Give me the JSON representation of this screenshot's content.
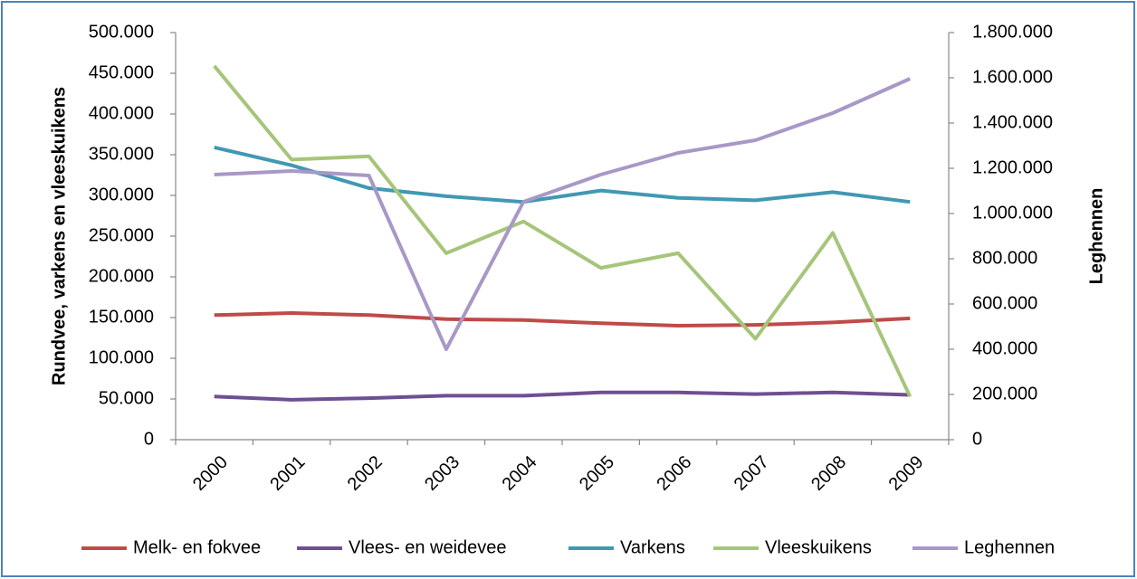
{
  "chart_data": {
    "type": "line",
    "y_label": "Rundvee, varkens en vleeskuikens",
    "y2_label": "Leghennen",
    "categories": [
      "2000",
      "2001",
      "2002",
      "2003",
      "2004",
      "2005",
      "2006",
      "2007",
      "2008",
      "2009"
    ],
    "series": [
      {
        "name": "Melk- en fokvee",
        "color": "#be4b48",
        "values": [
          153000,
          155500,
          153000,
          148000,
          147000,
          143000,
          140000,
          141000,
          144000,
          149000
        ]
      },
      {
        "name": "Vlees- en weidevee",
        "color": "#6e4f93",
        "values": [
          53000,
          49000,
          51000,
          54000,
          54000,
          58000,
          58000,
          56000,
          58000,
          55000
        ]
      },
      {
        "name": "Varkens",
        "color": "#4198b3",
        "values": [
          359000,
          337000,
          309000,
          299000,
          292000,
          306000,
          297000,
          294000,
          304000,
          292000
        ]
      },
      {
        "name": "Vleeskuikens",
        "color": "#a6c57a",
        "values": [
          459000,
          344000,
          348000,
          229000,
          268000,
          211000,
          229000,
          124000,
          254000,
          53000
        ]
      },
      {
        "name": "Leghennen",
        "color": "#a898c6",
        "axis": "y2",
        "values": [
          1172000,
          1188000,
          1168000,
          400000,
          1052000,
          1172000,
          1268000,
          1324000,
          1444000,
          1596000
        ]
      }
    ],
    "ylim": [
      0,
      500000
    ],
    "yticks": [
      0,
      {
        "value": 50000,
        "label": "50.000"
      },
      {
        "value": 100000,
        "label": "100.000"
      },
      {
        "value": 150000,
        "label": "150.000"
      },
      {
        "value": 200000,
        "label": "200.000"
      },
      {
        "value": 250000,
        "label": "250.000"
      },
      {
        "value": 300000,
        "label": "300.000"
      },
      {
        "value": 350000,
        "label": "350.000"
      },
      {
        "value": 400000,
        "label": "400.000"
      },
      {
        "value": 450000,
        "label": "450.000"
      },
      {
        "value": 500000,
        "label": "500.000"
      }
    ],
    "y2lim": [
      0,
      1800000
    ],
    "y2ticks": [
      0,
      {
        "value": 200000,
        "label": "200.000"
      },
      {
        "value": 400000,
        "label": "400.000"
      },
      {
        "value": 600000,
        "label": "600.000"
      },
      {
        "value": 800000,
        "label": "800.000"
      },
      {
        "value": 1000000,
        "label": "1.000.000"
      },
      {
        "value": 1200000,
        "label": "1.200.000"
      },
      {
        "value": 1400000,
        "label": "1.400.000"
      },
      {
        "value": 1600000,
        "label": "1.600.000"
      },
      {
        "value": 1800000,
        "label": "1.800.000"
      }
    ],
    "grid": false,
    "legend": "bottom"
  }
}
